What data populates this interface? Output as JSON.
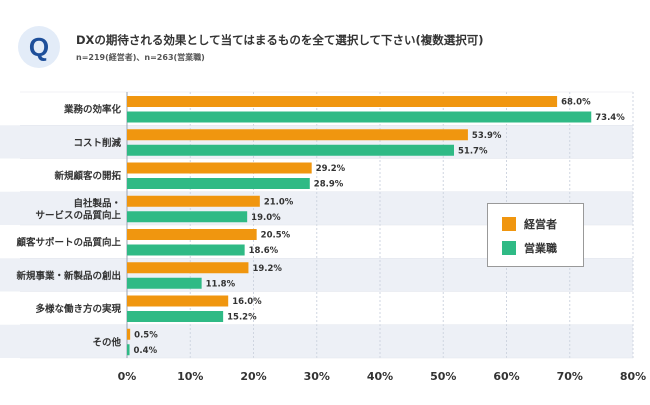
{
  "header": {
    "badge": "Q",
    "title": "DXの期待される効果として当てはまるものを全て選択して下さい(複数選択可)",
    "subtitle": "n=219(経営者)、n=263(営業職)"
  },
  "colors": {
    "series1": "#f0960f",
    "series2": "#2fba85",
    "band": "#edf0f6",
    "grid": "#cfd5e0"
  },
  "chart_data": {
    "type": "bar",
    "orientation": "horizontal",
    "categories": [
      [
        "業務の効率化"
      ],
      [
        "コスト削減"
      ],
      [
        "新規顧客の開拓"
      ],
      [
        "自社製品・",
        "サービスの品質向上"
      ],
      [
        "顧客サポートの品質向上"
      ],
      [
        "新規事業・新製品の創出"
      ],
      [
        "多様な働き方の実現"
      ],
      [
        "その他"
      ]
    ],
    "series": [
      {
        "name": "経営者",
        "values": [
          68.0,
          53.9,
          29.2,
          21.0,
          20.5,
          19.2,
          16.0,
          0.5
        ]
      },
      {
        "name": "営業職",
        "values": [
          73.4,
          51.7,
          28.9,
          19.0,
          18.6,
          11.8,
          15.2,
          0.4
        ]
      }
    ],
    "xlim": [
      0,
      80
    ],
    "xticks": [
      0,
      10,
      20,
      30,
      40,
      50,
      60,
      70,
      80
    ],
    "tick_suffix": "%",
    "value_suffix": "%",
    "grid": true,
    "legend_position": "right"
  }
}
